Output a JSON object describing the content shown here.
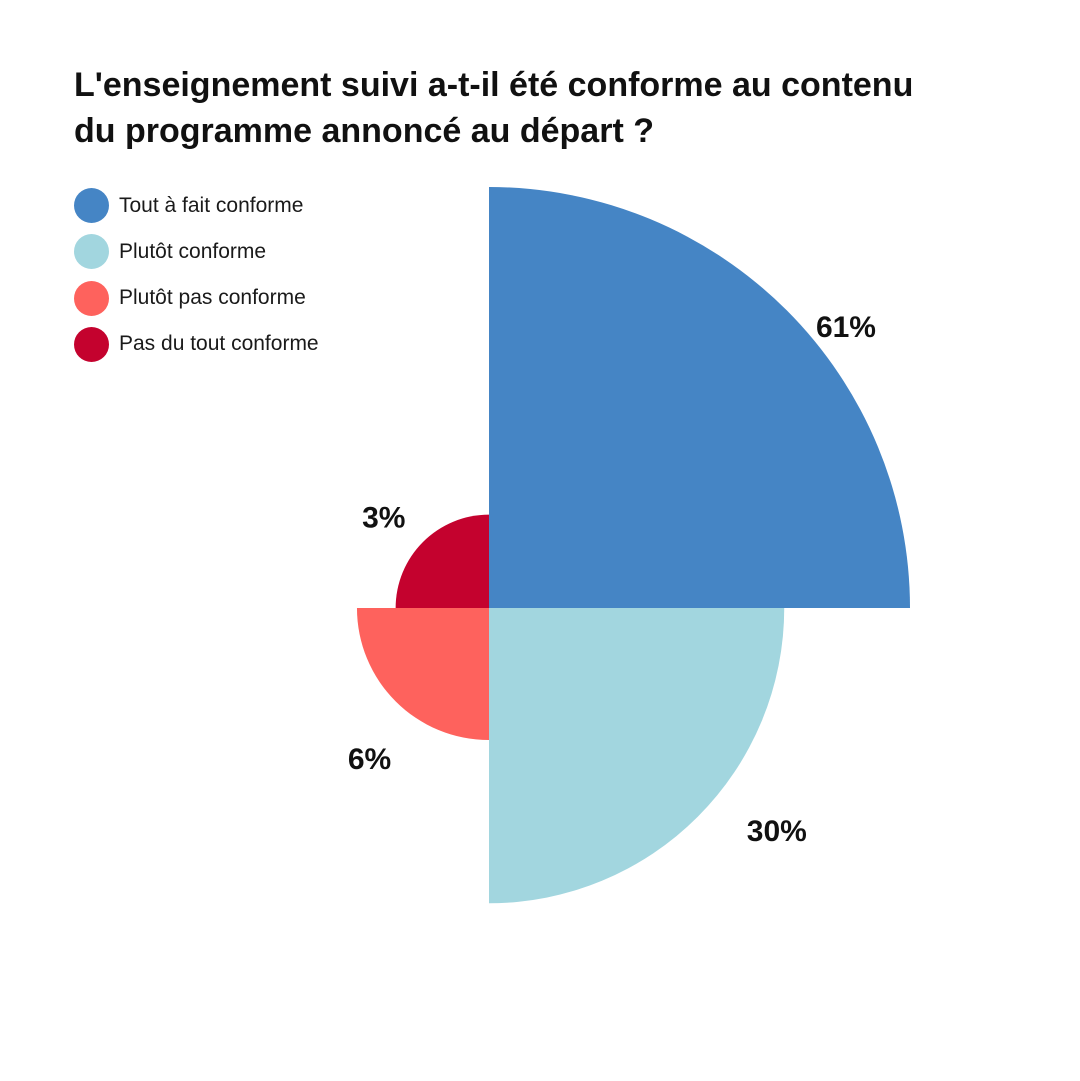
{
  "chart_data": {
    "type": "pie",
    "title_lines": [
      "L'enseignement suivi a-t-il été conforme au contenu",
      "du programme annoncé au départ ?"
    ],
    "categories": [
      "Tout à fait conforme",
      "Plutôt conforme",
      "Plutôt pas conforme",
      "Pas du tout conforme"
    ],
    "values": [
      61,
      30,
      6,
      3
    ],
    "labels": [
      "61%",
      "30%",
      "6%",
      "3%"
    ],
    "colors": [
      "#4585c5",
      "#a2d6df",
      "#fe625d",
      "#c4022e"
    ],
    "legend_position": "top-left"
  }
}
